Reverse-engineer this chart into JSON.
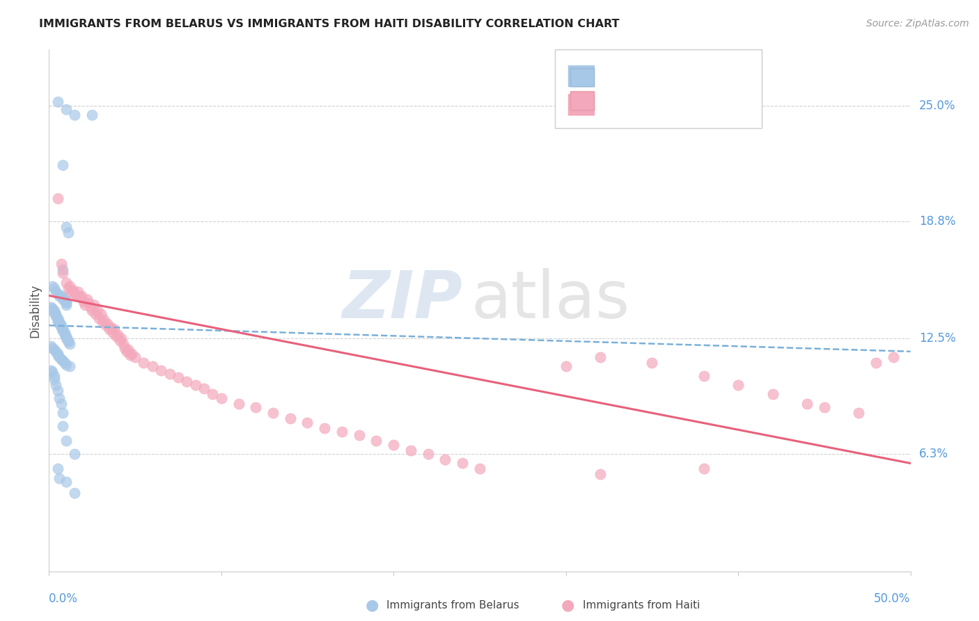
{
  "title": "IMMIGRANTS FROM BELARUS VS IMMIGRANTS FROM HAITI DISABILITY CORRELATION CHART",
  "source": "Source: ZipAtlas.com",
  "ylabel": "Disability",
  "ytick_labels": [
    "25.0%",
    "18.8%",
    "12.5%",
    "6.3%"
  ],
  "ytick_values": [
    0.25,
    0.188,
    0.125,
    0.063
  ],
  "xlim": [
    0.0,
    0.5
  ],
  "ylim": [
    0.0,
    0.28
  ],
  "color_belarus": "#a8c8e8",
  "color_haiti": "#f4a8bc",
  "color_trendline_belarus": "#7ab0d8",
  "color_trendline_haiti": "#e8607a",
  "background_color": "#ffffff",
  "grid_color": "#d0d0d0",
  "belarus_x": [
    0.005,
    0.01,
    0.015,
    0.025,
    0.008,
    0.01,
    0.011,
    0.008,
    0.002,
    0.003,
    0.004,
    0.005,
    0.006,
    0.007,
    0.008,
    0.008,
    0.009,
    0.01,
    0.01,
    0.01,
    0.001,
    0.002,
    0.002,
    0.003,
    0.003,
    0.004,
    0.004,
    0.005,
    0.005,
    0.005,
    0.006,
    0.006,
    0.007,
    0.007,
    0.008,
    0.008,
    0.008,
    0.009,
    0.009,
    0.01,
    0.01,
    0.011,
    0.011,
    0.012,
    0.001,
    0.002,
    0.003,
    0.004,
    0.005,
    0.005,
    0.006,
    0.007,
    0.008,
    0.009,
    0.01,
    0.012,
    0.001,
    0.002,
    0.003,
    0.003,
    0.004,
    0.005,
    0.006,
    0.007,
    0.008,
    0.008,
    0.01,
    0.015,
    0.005,
    0.006,
    0.01,
    0.015
  ],
  "belarus_y": [
    0.252,
    0.248,
    0.245,
    0.245,
    0.218,
    0.185,
    0.182,
    0.162,
    0.153,
    0.152,
    0.15,
    0.149,
    0.148,
    0.148,
    0.147,
    0.146,
    0.146,
    0.145,
    0.144,
    0.143,
    0.142,
    0.141,
    0.14,
    0.14,
    0.139,
    0.138,
    0.137,
    0.136,
    0.135,
    0.134,
    0.134,
    0.133,
    0.132,
    0.131,
    0.13,
    0.13,
    0.129,
    0.128,
    0.127,
    0.126,
    0.125,
    0.124,
    0.123,
    0.122,
    0.121,
    0.12,
    0.119,
    0.118,
    0.117,
    0.116,
    0.115,
    0.114,
    0.113,
    0.112,
    0.111,
    0.11,
    0.108,
    0.107,
    0.105,
    0.103,
    0.1,
    0.097,
    0.093,
    0.09,
    0.085,
    0.078,
    0.07,
    0.063,
    0.055,
    0.05,
    0.048,
    0.042
  ],
  "haiti_x": [
    0.005,
    0.007,
    0.008,
    0.01,
    0.011,
    0.012,
    0.013,
    0.014,
    0.015,
    0.016,
    0.017,
    0.018,
    0.019,
    0.02,
    0.021,
    0.022,
    0.023,
    0.024,
    0.025,
    0.026,
    0.027,
    0.028,
    0.029,
    0.03,
    0.031,
    0.032,
    0.033,
    0.034,
    0.035,
    0.036,
    0.037,
    0.038,
    0.039,
    0.04,
    0.041,
    0.042,
    0.043,
    0.044,
    0.045,
    0.046,
    0.047,
    0.048,
    0.05,
    0.055,
    0.06,
    0.065,
    0.07,
    0.075,
    0.08,
    0.085,
    0.09,
    0.095,
    0.1,
    0.11,
    0.12,
    0.13,
    0.14,
    0.15,
    0.16,
    0.17,
    0.18,
    0.19,
    0.2,
    0.21,
    0.22,
    0.23,
    0.24,
    0.25,
    0.3,
    0.32,
    0.35,
    0.38,
    0.4,
    0.42,
    0.44,
    0.45,
    0.47,
    0.48,
    0.49,
    0.32,
    0.38
  ],
  "haiti_y": [
    0.2,
    0.165,
    0.16,
    0.155,
    0.152,
    0.153,
    0.15,
    0.151,
    0.149,
    0.148,
    0.15,
    0.147,
    0.148,
    0.145,
    0.143,
    0.146,
    0.144,
    0.142,
    0.14,
    0.143,
    0.138,
    0.14,
    0.136,
    0.138,
    0.134,
    0.135,
    0.132,
    0.133,
    0.13,
    0.131,
    0.128,
    0.13,
    0.126,
    0.127,
    0.124,
    0.125,
    0.122,
    0.12,
    0.118,
    0.119,
    0.116,
    0.117,
    0.115,
    0.112,
    0.11,
    0.108,
    0.106,
    0.104,
    0.102,
    0.1,
    0.098,
    0.095,
    0.093,
    0.09,
    0.088,
    0.085,
    0.082,
    0.08,
    0.077,
    0.075,
    0.073,
    0.07,
    0.068,
    0.065,
    0.063,
    0.06,
    0.058,
    0.055,
    0.11,
    0.115,
    0.112,
    0.105,
    0.1,
    0.095,
    0.09,
    0.088,
    0.085,
    0.112,
    0.115,
    0.052,
    0.055
  ],
  "trendline_belarus_x0": 0.0,
  "trendline_belarus_x1": 0.5,
  "trendline_belarus_y0": 0.132,
  "trendline_belarus_y1": 0.118,
  "trendline_haiti_x0": 0.0,
  "trendline_haiti_x1": 0.5,
  "trendline_haiti_y0": 0.148,
  "trendline_haiti_y1": 0.058
}
